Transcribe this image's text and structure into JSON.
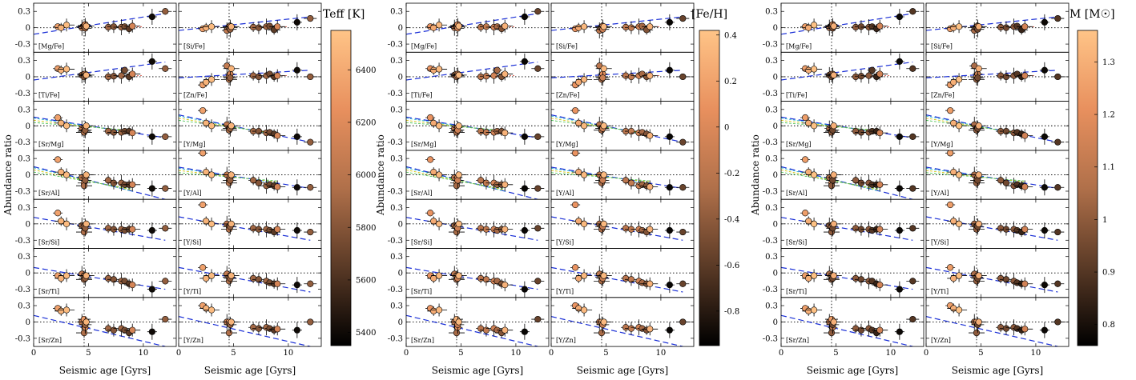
{
  "chart_data": {
    "type": "scatter",
    "x_axis": {
      "label": "Seismic age [Gyrs]",
      "lim": [
        0,
        13
      ],
      "ticks": [
        0,
        5,
        10
      ]
    },
    "y_axis": {
      "label": "Abundance ratio",
      "lim": [
        -0.45,
        0.45
      ],
      "ticks": [
        0.3,
        0,
        -0.3
      ],
      "tick_labels": [
        "0.3",
        "0",
        "-0.3"
      ]
    },
    "reference_lines": {
      "age": 4.6,
      "ratio": 0
    },
    "rows": [
      {
        "left": "[Mg/Fe]",
        "right": "[Si/Fe]"
      },
      {
        "left": "[Ti/Fe]",
        "right": "[Zn/Fe]"
      },
      {
        "left": "[Sr/Mg]",
        "right": "[Y/Mg]"
      },
      {
        "left": "[Sr/Al]",
        "right": "[Y/Al]"
      },
      {
        "left": "[Sr/Si]",
        "right": "[Y/Si]"
      },
      {
        "left": "[Sr/Ti]",
        "right": "[Y/Ti]"
      },
      {
        "left": "[Sr/Zn]",
        "right": "[Y/Zn]"
      }
    ],
    "ages": [
      2.2,
      2.5,
      3.0,
      4.4,
      4.6,
      4.6,
      4.7,
      4.7,
      4.8,
      6.8,
      7.3,
      8.0,
      8.3,
      8.7,
      9.0,
      10.8,
      12.0
    ],
    "color_values": [
      [
        6350,
        6450,
        6500,
        6050,
        6300,
        5950,
        6150,
        5850,
        6450,
        5900,
        5800,
        5900,
        5750,
        5650,
        6150,
        5400,
        5850
      ],
      [
        0.1,
        0.25,
        0.35,
        -0.2,
        0.3,
        -0.3,
        0.05,
        -0.1,
        0.35,
        -0.2,
        -0.15,
        -0.05,
        -0.3,
        -0.45,
        0.3,
        -0.92,
        -0.55
      ],
      [
        1.25,
        1.3,
        1.35,
        1.05,
        1.25,
        1.0,
        1.1,
        0.95,
        1.3,
        1.0,
        0.95,
        1.0,
        0.9,
        0.85,
        1.15,
        0.78,
        0.9
      ]
    ],
    "values": {
      "[Mg/Fe]": [
        0.02,
        0.0,
        0.05,
        0.0,
        0.04,
        0.02,
        0.06,
        -0.01,
        0.03,
        0.01,
        0.02,
        0.01,
        0.02,
        -0.02,
        0.03,
        0.2,
        0.3
      ],
      "[Si/Fe]": [
        -0.02,
        0.0,
        0.02,
        -0.05,
        0.02,
        0.0,
        0.03,
        -0.03,
        0.02,
        0.01,
        0.0,
        0.02,
        0.03,
        -0.04,
        0.02,
        0.1,
        0.17
      ],
      "[Ti/Fe]": [
        0.15,
        0.12,
        0.14,
        0.03,
        0.05,
        0.0,
        0.05,
        0.02,
        0.03,
        0.0,
        0.01,
        0.02,
        0.12,
        0.0,
        0.05,
        0.28,
        0.15
      ],
      "[Zn/Fe]": [
        -0.15,
        -0.1,
        -0.05,
        0.2,
        0.0,
        -0.05,
        0.05,
        -0.02,
        0.15,
        0.02,
        0.0,
        0.02,
        0.05,
        0.0,
        0.02,
        0.12,
        0.0
      ],
      "[Sr/Mg]": [
        0.15,
        0.05,
        0.0,
        -0.05,
        -0.1,
        -0.12,
        -0.03,
        -0.08,
        0.0,
        -0.1,
        -0.12,
        -0.12,
        -0.1,
        -0.1,
        -0.13,
        -0.2,
        -0.2
      ],
      "[Y/Mg]": [
        0.28,
        0.05,
        0.0,
        0.02,
        -0.05,
        -0.08,
        -0.03,
        -0.05,
        0.0,
        -0.1,
        -0.1,
        -0.13,
        -0.12,
        -0.15,
        -0.18,
        -0.2,
        -0.3
      ],
      "[Sr/Al]": [
        0.28,
        0.05,
        0.0,
        -0.05,
        -0.15,
        -0.2,
        -0.05,
        -0.1,
        0.0,
        -0.1,
        -0.15,
        -0.15,
        -0.18,
        -0.18,
        -0.18,
        -0.25,
        -0.25
      ],
      "[Y/Al]": [
        0.4,
        0.05,
        0.0,
        0.0,
        -0.1,
        -0.15,
        -0.05,
        -0.1,
        0.0,
        -0.1,
        -0.15,
        -0.2,
        -0.18,
        -0.2,
        -0.22,
        -0.23,
        -0.23
      ],
      "[Sr/Si]": [
        0.2,
        0.05,
        0.0,
        -0.03,
        -0.05,
        -0.15,
        -0.02,
        -0.08,
        0.0,
        -0.08,
        -0.1,
        -0.1,
        -0.12,
        -0.1,
        -0.1,
        -0.12,
        -0.08
      ],
      "[Y/Si]": [
        0.35,
        0.05,
        0.0,
        0.0,
        -0.05,
        -0.1,
        -0.02,
        -0.05,
        0.0,
        -0.08,
        -0.1,
        -0.1,
        -0.12,
        -0.15,
        -0.1,
        -0.12,
        -0.15
      ],
      "[Sr/Ti]": [
        -0.05,
        -0.1,
        -0.05,
        -0.02,
        -0.05,
        -0.12,
        -0.05,
        -0.1,
        -0.05,
        -0.1,
        -0.12,
        -0.15,
        -0.15,
        -0.2,
        -0.22,
        -0.3,
        -0.15
      ],
      "[Y/Ti]": [
        0.1,
        -0.1,
        -0.05,
        -0.02,
        -0.08,
        -0.15,
        -0.05,
        -0.1,
        -0.05,
        -0.1,
        -0.12,
        -0.15,
        -0.18,
        -0.2,
        -0.2,
        -0.22,
        -0.2
      ],
      "[Sr/Zn]": [
        0.25,
        0.2,
        0.22,
        0.0,
        0.05,
        -0.2,
        -0.1,
        -0.05,
        0.0,
        -0.12,
        -0.15,
        -0.12,
        -0.15,
        -0.2,
        -0.15,
        -0.18,
        0.05
      ],
      "[Y/Zn]": [
        0.3,
        0.25,
        0.22,
        0.0,
        0.0,
        -0.2,
        -0.05,
        -0.05,
        0.0,
        -0.1,
        -0.12,
        -0.1,
        -0.12,
        -0.15,
        -0.13,
        -0.15,
        0.0
      ]
    },
    "trend_lines": {
      "[Mg/Fe]": [
        [
          0,
          -0.12,
          12,
          0.26
        ]
      ],
      "[Si/Fe]": [
        [
          0,
          -0.05,
          12,
          0.2
        ]
      ],
      "[Ti/Fe]": [
        [
          0,
          -0.06,
          12,
          0.27
        ]
      ],
      "[Zn/Fe]": [
        [
          0,
          -0.02,
          12,
          0.12
        ]
      ],
      "[Sr/Mg]": [
        [
          0,
          0.16,
          12,
          -0.22
        ]
      ],
      "[Y/Mg]": [
        [
          0,
          0.2,
          12,
          -0.3
        ]
      ],
      "[Sr/Al]": [
        [
          0,
          0.15,
          12,
          -0.45
        ]
      ],
      "[Y/Al]": [
        [
          0,
          0.14,
          12,
          -0.25
        ]
      ],
      "[Sr/Si]": [
        [
          0,
          0.12,
          12,
          -0.3
        ]
      ],
      "[Y/Si]": [
        [
          0,
          0.13,
          12,
          -0.3
        ]
      ],
      "[Sr/Ti]": [
        [
          0,
          0.1,
          12,
          -0.3
        ]
      ],
      "[Y/Ti]": [
        [
          0,
          0.1,
          12,
          -0.35
        ]
      ],
      "[Sr/Zn]": [
        [
          0,
          0.12,
          12,
          -0.45
        ]
      ],
      "[Y/Zn]": [
        [
          0,
          0.1,
          12,
          -0.45
        ]
      ]
    },
    "colorbars": [
      {
        "title": "Teff [K]",
        "min": 5350,
        "max": 6550,
        "ticks": [
          5400,
          5600,
          5800,
          6000,
          6200,
          6400
        ],
        "tick_labels": [
          "5400",
          "5600",
          "5800",
          "6000",
          "6200",
          "6400"
        ]
      },
      {
        "title": "[Fe/H]",
        "min": -0.95,
        "max": 0.42,
        "ticks": [
          -0.8,
          -0.6,
          -0.4,
          -0.2,
          0,
          0.2,
          0.4
        ],
        "tick_labels": [
          "-0.8",
          "-0.6",
          "-0.4",
          "-0.2",
          "0",
          "0.2",
          "0.4"
        ]
      },
      {
        "title": "M [M☉]",
        "min": 0.76,
        "max": 1.36,
        "ticks": [
          0.8,
          0.9,
          1.0,
          1.1,
          1.2,
          1.3
        ],
        "tick_labels": [
          "0.8",
          "0.9",
          "1",
          "1.1",
          "1.2",
          "1.3"
        ]
      }
    ],
    "colormap": [
      "#000000",
      "#5a3a26",
      "#b0704a",
      "#e8905e",
      "#ffc487"
    ],
    "colors": {
      "trend": "#1a2fd6",
      "accent": "#d23c2a",
      "extra": [
        "#19b6c9",
        "#d4c000",
        "#3fbf4a"
      ]
    }
  }
}
